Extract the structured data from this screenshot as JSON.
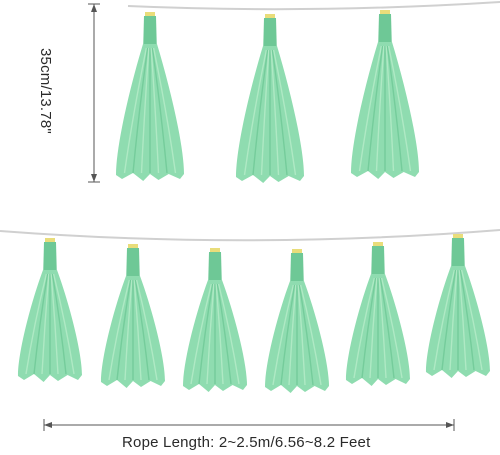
{
  "labels": {
    "height_dimension": "35cm/13.78\"",
    "rope_length": "Rope Length: 2~2.5m/6.56~8.2 Feet"
  },
  "colors": {
    "tassel": "#8fdcb0",
    "tassel_shadow": "#6ec896",
    "tassel_highlight": "#b6ecc9",
    "rope": "#d0d0d0",
    "clip": "#e9dd7a",
    "dimension_line": "#555555"
  },
  "scene": {
    "top_row_tassel_count": 3,
    "bottom_row_tassel_count": 6
  }
}
